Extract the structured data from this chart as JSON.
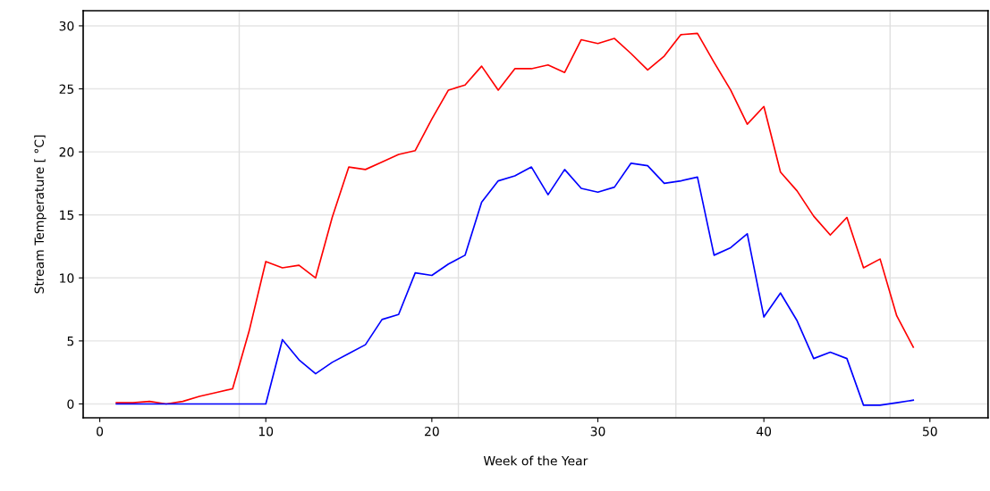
{
  "chart_data": {
    "type": "line",
    "xlabel": "Week of the Year",
    "ylabel": "Stream Temperature [ °C]",
    "x": [
      1,
      2,
      3,
      4,
      5,
      6,
      7,
      8,
      9,
      10,
      11,
      12,
      13,
      14,
      15,
      16,
      17,
      18,
      19,
      20,
      21,
      22,
      23,
      24,
      25,
      26,
      27,
      28,
      29,
      30,
      31,
      32,
      33,
      34,
      35,
      36,
      37,
      38,
      39,
      40,
      41,
      42,
      43,
      44,
      45,
      46,
      47,
      48,
      49
    ],
    "series": [
      {
        "color": "#ff0000",
        "values": [
          0.1,
          0.1,
          0.2,
          0,
          0.2,
          0.6,
          0.9,
          1.2,
          5.8,
          11.3,
          10.8,
          11,
          10,
          14.8,
          18.8,
          18.6,
          19.2,
          19.8,
          20.1,
          22.6,
          24.9,
          25.3,
          26.8,
          24.9,
          26.6,
          26.6,
          26.9,
          26.3,
          28.9,
          28.6,
          29,
          27.8,
          26.5,
          27.6,
          29.3,
          29.4,
          27.1,
          24.9,
          22.2,
          23.6,
          18.4,
          16.9,
          14.9,
          13.4,
          14.8,
          10.8,
          11.5,
          7,
          4.5
        ]
      },
      {
        "color": "#0000ff",
        "values": [
          0,
          0,
          0,
          0,
          0,
          0,
          0,
          0,
          0,
          0,
          5.1,
          3.5,
          2.4,
          3.3,
          4,
          4.7,
          6.7,
          7.1,
          10.4,
          10.2,
          11.1,
          11.8,
          16,
          17.7,
          18.1,
          18.8,
          16.6,
          18.6,
          17.1,
          16.8,
          17.2,
          19.1,
          18.9,
          17.5,
          17.7,
          18,
          11.8,
          12.4,
          13.5,
          6.9,
          8.8,
          6.6,
          3.6,
          4.1,
          3.6,
          -0.1,
          -0.1,
          0.1,
          0.3
        ]
      }
    ],
    "xlim": [
      -1,
      53.5
    ],
    "xticks": [
      0,
      10,
      20,
      30,
      40,
      50
    ],
    "ylim": [
      -1.1,
      31.2
    ],
    "yticks": [
      0,
      5,
      10,
      15,
      20,
      25,
      30
    ],
    "grid": "y",
    "ref_lines": [
      {
        "axis": "x",
        "value": 8.4,
        "color": "#e0e0e0"
      },
      {
        "axis": "x",
        "value": 21.6,
        "color": "#e0e0e0"
      },
      {
        "axis": "x",
        "value": 34.7,
        "color": "#e0e0e0"
      },
      {
        "axis": "x",
        "value": 47.6,
        "color": "#e0e0e0"
      }
    ],
    "line_style": "solid",
    "marker": "none",
    "legend": false
  }
}
